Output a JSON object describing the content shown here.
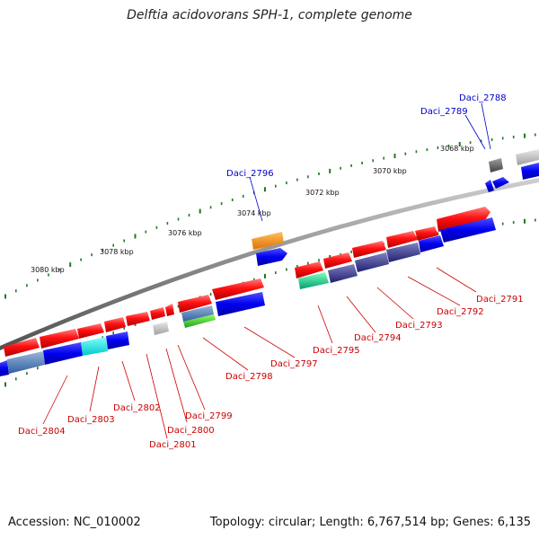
{
  "title": "Delftia acidovorans SPH-1, complete genome",
  "footer": {
    "accession": "Accession: NC_010002",
    "topology": "Topology: circular; Length: 6,767,514 bp; Genes: 6,135"
  },
  "colors": {
    "backbone": "#8a8a8a",
    "tick": "#1f7a1f",
    "forward_gene": "#ff0000",
    "reverse_gene": "#0000ff",
    "label_forward": "#cc0000",
    "label_reverse": "#0000cc"
  },
  "scale_labels": [
    "3068 kbp",
    "3070 kbp",
    "3072 kbp",
    "3074 kbp",
    "3076 kbp",
    "3078 kbp",
    "3080 kbp"
  ],
  "gene_labels": [
    {
      "text": "Daci_2788",
      "color": "reverse"
    },
    {
      "text": "Daci_2789",
      "color": "reverse"
    },
    {
      "text": "Daci_2796",
      "color": "reverse"
    },
    {
      "text": "Daci_2791",
      "color": "forward"
    },
    {
      "text": "Daci_2792",
      "color": "forward"
    },
    {
      "text": "Daci_2793",
      "color": "forward"
    },
    {
      "text": "Daci_2794",
      "color": "forward"
    },
    {
      "text": "Daci_2795",
      "color": "forward"
    },
    {
      "text": "Daci_2797",
      "color": "forward"
    },
    {
      "text": "Daci_2798",
      "color": "forward"
    },
    {
      "text": "Daci_2799",
      "color": "forward"
    },
    {
      "text": "Daci_2800",
      "color": "forward"
    },
    {
      "text": "Daci_2801",
      "color": "forward"
    },
    {
      "text": "Daci_2802",
      "color": "forward"
    },
    {
      "text": "Daci_2803",
      "color": "forward"
    },
    {
      "text": "Daci_2804",
      "color": "forward"
    }
  ]
}
